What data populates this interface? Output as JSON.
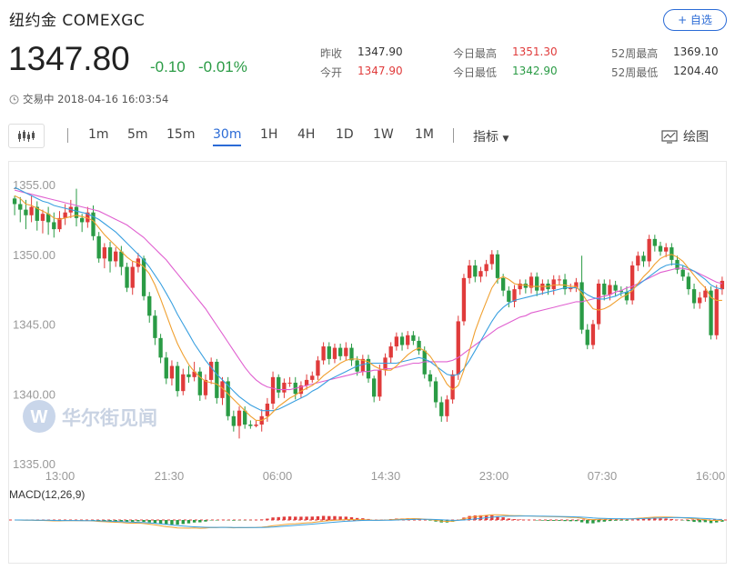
{
  "header": {
    "title": "纽约金 COMEXGC",
    "add_watchlist": "+ 自选",
    "price": "1347.80",
    "change": "-0.10",
    "change_pct": "-0.01%",
    "status": "交易中 2018-04-16 16:03:54"
  },
  "stats": [
    {
      "label": "昨收",
      "value": "1347.90",
      "color": "#333333"
    },
    {
      "label": "今开",
      "value": "1347.90",
      "color": "#e03b3b"
    },
    {
      "label": "今日最高",
      "value": "1351.30",
      "color": "#e03b3b"
    },
    {
      "label": "今日最低",
      "value": "1342.90",
      "color": "#2a9b45"
    },
    {
      "label": "52周最高",
      "value": "1369.10",
      "color": "#333333"
    },
    {
      "label": "52周最低",
      "value": "1204.40",
      "color": "#333333"
    }
  ],
  "toolbar": {
    "periods": [
      "1m",
      "5m",
      "15m",
      "30m",
      "1H",
      "4H",
      "1D",
      "1W",
      "1M"
    ],
    "active": "30m",
    "indicator_label": "指标",
    "draw_label": "绘图"
  },
  "watermark": "华尔街见闻",
  "colors": {
    "up": "#e03b3b",
    "down": "#2a9b45",
    "accent": "#2b6bd6",
    "ma_fast": "#f0a030",
    "ma_mid": "#3aa0e0",
    "ma_slow": "#e060d0"
  },
  "chart_data": {
    "type": "candlestick",
    "y_ticks": [
      "1335.00",
      "1340.00",
      "1345.00",
      "1350.00",
      "1355.00"
    ],
    "ylim": [
      1335,
      1355
    ],
    "x_ticks": [
      "13:00",
      "21:30",
      "06:00",
      "14:30",
      "23:00",
      "07:30",
      "16:00"
    ],
    "ohlc": [
      [
        1354,
        1353.6,
        1352.8,
        1354.2
      ],
      [
        1353.6,
        1353.2,
        1352.3,
        1354.1
      ],
      [
        1353.2,
        1352.8,
        1351.8,
        1353.9
      ],
      [
        1352.8,
        1353.4,
        1352.3,
        1354.2
      ],
      [
        1353.4,
        1352.4,
        1351.7,
        1353.8
      ],
      [
        1352.4,
        1352.9,
        1351.5,
        1353.2
      ],
      [
        1352.9,
        1352.3,
        1351.4,
        1353.4
      ],
      [
        1352.3,
        1351.8,
        1351.2,
        1353
      ],
      [
        1351.8,
        1352.6,
        1351.6,
        1353.1
      ],
      [
        1352.6,
        1353,
        1352.1,
        1353.6
      ],
      [
        1353,
        1353.4,
        1352.6,
        1353.9
      ],
      [
        1353.4,
        1352.6,
        1352,
        1354.7
      ],
      [
        1352.6,
        1352.3,
        1351.6,
        1352.9
      ],
      [
        1352.3,
        1353,
        1351.9,
        1353.4
      ],
      [
        1353,
        1351.3,
        1351,
        1353.5
      ],
      [
        1351.3,
        1349.7,
        1349.4,
        1351.6
      ],
      [
        1349.7,
        1350.5,
        1349,
        1350.8
      ],
      [
        1350.5,
        1349.5,
        1348.7,
        1350.9
      ],
      [
        1349.5,
        1350.2,
        1349.1,
        1350.5
      ],
      [
        1350.2,
        1349.1,
        1348.5,
        1350.6
      ],
      [
        1349.1,
        1347.6,
        1347.3,
        1349.4
      ],
      [
        1347.6,
        1349.1,
        1347.1,
        1349.5
      ],
      [
        1349.1,
        1349.7,
        1348.7,
        1350.1
      ],
      [
        1349.7,
        1347,
        1346.7,
        1349.9
      ],
      [
        1347,
        1345.6,
        1345.1,
        1347.3
      ],
      [
        1345.6,
        1344,
        1343.5,
        1346
      ],
      [
        1344,
        1342.6,
        1342.2,
        1344.3
      ],
      [
        1342.6,
        1341.1,
        1340.7,
        1343
      ],
      [
        1341.1,
        1342,
        1340.6,
        1342.4
      ],
      [
        1342,
        1340.2,
        1339.8,
        1342.3
      ],
      [
        1340.2,
        1341.4,
        1339.9,
        1341.8
      ],
      [
        1341.4,
        1341.2,
        1340.8,
        1342
      ],
      [
        1341.2,
        1341.6,
        1340.9,
        1342.3
      ],
      [
        1341.6,
        1339.9,
        1339.5,
        1341.9
      ],
      [
        1339.9,
        1341,
        1339.6,
        1341.4
      ],
      [
        1341,
        1342.3,
        1340.7,
        1342.6
      ],
      [
        1342.3,
        1339.7,
        1339.3,
        1342.5
      ],
      [
        1339.7,
        1340.9,
        1339.2,
        1341.2
      ],
      [
        1340.9,
        1338.4,
        1338.1,
        1341.2
      ],
      [
        1338.4,
        1337.7,
        1337.3,
        1338.8
      ],
      [
        1337.7,
        1338.8,
        1336.8,
        1339.1
      ],
      [
        1338.8,
        1337.8,
        1337.5,
        1339.1
      ],
      [
        1337.8,
        1337.7,
        1337.5,
        1338.1
      ],
      [
        1337.7,
        1337.8,
        1337.6,
        1338.1
      ],
      [
        1337.8,
        1338.4,
        1337.3,
        1338.9
      ],
      [
        1338.4,
        1339.3,
        1338,
        1339.7
      ],
      [
        1339.3,
        1341.2,
        1338.9,
        1341.6
      ],
      [
        1341.2,
        1340.1,
        1339.7,
        1341.4
      ],
      [
        1340.1,
        1340.8,
        1339.7,
        1341.1
      ],
      [
        1340.8,
        1340.8,
        1340.5,
        1341.2
      ],
      [
        1340.8,
        1340,
        1339.6,
        1341.2
      ],
      [
        1340,
        1340.6,
        1339.7,
        1340.9
      ],
      [
        1340.6,
        1341,
        1340.3,
        1341.4
      ],
      [
        1341,
        1341.3,
        1340.8,
        1341.6
      ],
      [
        1341.3,
        1342.4,
        1341,
        1342.7
      ],
      [
        1342.4,
        1343.4,
        1342.1,
        1343.7
      ],
      [
        1343.4,
        1342.5,
        1342.1,
        1343.7
      ],
      [
        1342.5,
        1343.3,
        1342.2,
        1343.6
      ],
      [
        1343.3,
        1342.7,
        1342.4,
        1343.6
      ],
      [
        1342.7,
        1343.3,
        1342.4,
        1343.7
      ],
      [
        1343.3,
        1342.4,
        1342,
        1343.6
      ],
      [
        1342.4,
        1341.6,
        1341.3,
        1342.7
      ],
      [
        1341.6,
        1342.5,
        1341.3,
        1342.8
      ],
      [
        1342.5,
        1341.1,
        1340.8,
        1342.8
      ],
      [
        1341.1,
        1339.8,
        1339.4,
        1341.3
      ],
      [
        1339.8,
        1341.7,
        1339.5,
        1342.1
      ],
      [
        1341.7,
        1342.6,
        1341.3,
        1342.9
      ],
      [
        1342.6,
        1343.4,
        1342.2,
        1343.7
      ],
      [
        1343.4,
        1344.1,
        1343.1,
        1344.4
      ],
      [
        1344.1,
        1343.5,
        1343.1,
        1344.4
      ],
      [
        1343.5,
        1344.2,
        1343.2,
        1344.5
      ],
      [
        1344.2,
        1343.8,
        1343.5,
        1344.5
      ],
      [
        1343.8,
        1343.1,
        1342.8,
        1344.1
      ],
      [
        1343.1,
        1341.4,
        1341.1,
        1343.4
      ],
      [
        1341.4,
        1340.9,
        1340.5,
        1341.7
      ],
      [
        1340.9,
        1339.4,
        1339,
        1341.2
      ],
      [
        1339.4,
        1338.4,
        1338,
        1339.8
      ],
      [
        1338.4,
        1339.6,
        1338,
        1339.9
      ],
      [
        1339.6,
        1341.4,
        1339.3,
        1341.7
      ],
      [
        1341.4,
        1345.2,
        1341,
        1345.6
      ],
      [
        1345.2,
        1348.3,
        1344.9,
        1348.6
      ],
      [
        1348.3,
        1349.2,
        1347.9,
        1349.6
      ],
      [
        1349.2,
        1348.4,
        1348,
        1349.6
      ],
      [
        1348.4,
        1348.8,
        1348,
        1349.1
      ],
      [
        1348.8,
        1349.3,
        1348.4,
        1349.6
      ],
      [
        1349.3,
        1350,
        1348.9,
        1350.3
      ],
      [
        1350,
        1348.3,
        1347.9,
        1350.3
      ],
      [
        1348.3,
        1347.4,
        1347,
        1348.6
      ],
      [
        1347.4,
        1346.6,
        1346.2,
        1347.7
      ],
      [
        1346.6,
        1347.5,
        1346.2,
        1347.8
      ],
      [
        1347.5,
        1347.9,
        1347.1,
        1348.2
      ],
      [
        1347.9,
        1347.6,
        1347.2,
        1348.2
      ],
      [
        1347.6,
        1348.4,
        1347.2,
        1348.7
      ],
      [
        1348.4,
        1347.4,
        1347,
        1348.7
      ],
      [
        1347.4,
        1347.9,
        1347.1,
        1348.2
      ],
      [
        1347.9,
        1347.5,
        1347.1,
        1348.2
      ],
      [
        1347.5,
        1348.2,
        1347.1,
        1348.5
      ],
      [
        1348.2,
        1348.2,
        1347.8,
        1348.5
      ],
      [
        1348.2,
        1347.5,
        1347.1,
        1348.6
      ],
      [
        1347.5,
        1347.6,
        1347.3,
        1347.9
      ],
      [
        1347.6,
        1348,
        1347.3,
        1348.3
      ],
      [
        1348,
        1344.6,
        1344.3,
        1349.9
      ],
      [
        1344.6,
        1343.5,
        1343.2,
        1345
      ],
      [
        1343.5,
        1345,
        1343.2,
        1345.3
      ],
      [
        1345,
        1347.9,
        1344.6,
        1348.2
      ],
      [
        1347.9,
        1347.1,
        1346.7,
        1348.2
      ],
      [
        1347.1,
        1347.8,
        1346.7,
        1348.2
      ],
      [
        1347.8,
        1347.4,
        1347,
        1348.1
      ],
      [
        1347.4,
        1347.3,
        1347,
        1347.7
      ],
      [
        1347.3,
        1346.7,
        1346.4,
        1347.7
      ],
      [
        1346.7,
        1349.2,
        1346.4,
        1349.5
      ],
      [
        1349.2,
        1349.9,
        1348.8,
        1350.2
      ],
      [
        1349.9,
        1349.5,
        1349.1,
        1350.2
      ],
      [
        1349.5,
        1351.1,
        1349.1,
        1351.4
      ],
      [
        1351.1,
        1350.6,
        1350.2,
        1351.4
      ],
      [
        1350.6,
        1350.2,
        1349.9,
        1350.9
      ],
      [
        1350.2,
        1350.5,
        1349.8,
        1350.8
      ],
      [
        1350.5,
        1349.6,
        1349.2,
        1350.8
      ],
      [
        1349.6,
        1348.9,
        1348.6,
        1349.9
      ],
      [
        1348.9,
        1348.4,
        1348.1,
        1349.2
      ],
      [
        1348.4,
        1347.5,
        1347.1,
        1348.7
      ],
      [
        1347.5,
        1346.5,
        1346.1,
        1347.9
      ],
      [
        1346.5,
        1346.9,
        1346.1,
        1347.3
      ],
      [
        1346.9,
        1347.4,
        1346.6,
        1347.7
      ],
      [
        1347.4,
        1344.2,
        1343.9,
        1347.7
      ],
      [
        1344.2,
        1347.5,
        1343.9,
        1347.8
      ],
      [
        1347.5,
        1348.1,
        1347.1,
        1348.4
      ]
    ],
    "ma_fast": [
      1354.2,
      1354,
      1353.6,
      1353.5,
      1353.3,
      1353.1,
      1352.9,
      1352.6,
      1352.5,
      1352.6,
      1352.7,
      1352.8,
      1352.7,
      1352.6,
      1352.4,
      1351.9,
      1351.4,
      1351,
      1350.6,
      1350.2,
      1349.8,
      1349.5,
      1349.4,
      1349.1,
      1348.6,
      1347.8,
      1346.8,
      1345.7,
      1344.6,
      1343.6,
      1342.8,
      1342.1,
      1341.6,
      1341.2,
      1340.9,
      1340.8,
      1340.7,
      1340.4,
      1340,
      1339.6,
      1339.2,
      1338.8,
      1338.4,
      1338.1,
      1338.1,
      1338.3,
      1338.7,
      1339.1,
      1339.4,
      1339.7,
      1339.9,
      1340.2,
      1340.4,
      1340.6,
      1340.9,
      1341.3,
      1341.6,
      1341.9,
      1342.2,
      1342.4,
      1342.5,
      1342.5,
      1342.4,
      1342.3,
      1342,
      1341.8,
      1341.7,
      1341.7,
      1342,
      1342.4,
      1342.8,
      1343.1,
      1343.3,
      1343.1,
      1342.7,
      1342.1,
      1341.4,
      1340.7,
      1340.3,
      1340.6,
      1341.7,
      1343.1,
      1344.5,
      1345.6,
      1346.6,
      1347.6,
      1348.2,
      1348.4,
      1348.2,
      1347.9,
      1347.8,
      1347.8,
      1347.7,
      1347.7,
      1347.7,
      1347.7,
      1347.8,
      1347.8,
      1347.8,
      1347.7,
      1347.7,
      1347.2,
      1346.6,
      1346.1,
      1346,
      1346.1,
      1346.3,
      1346.6,
      1346.9,
      1347.1,
      1347.4,
      1347.9,
      1348.4,
      1348.8,
      1349.3,
      1349.7,
      1349.9,
      1350,
      1349.8,
      1349.5,
      1349,
      1348.5,
      1348,
      1347.6,
      1346.9,
      1346.7,
      1346.7
    ],
    "ma_mid": [
      1354.8,
      1354.6,
      1354.4,
      1354.2,
      1354,
      1353.8,
      1353.7,
      1353.5,
      1353.4,
      1353.3,
      1353.2,
      1353.1,
      1353,
      1352.9,
      1352.7,
      1352.5,
      1352.2,
      1351.9,
      1351.6,
      1351.2,
      1350.8,
      1350.4,
      1350,
      1349.6,
      1349.1,
      1348.5,
      1347.9,
      1347.2,
      1346.5,
      1345.7,
      1345,
      1344.3,
      1343.6,
      1343,
      1342.4,
      1341.9,
      1341.4,
      1341,
      1340.6,
      1340.2,
      1339.8,
      1339.5,
      1339.2,
      1339,
      1338.8,
      1338.8,
      1338.8,
      1338.9,
      1339.1,
      1339.3,
      1339.5,
      1339.7,
      1339.9,
      1340.2,
      1340.4,
      1340.7,
      1341,
      1341.2,
      1341.4,
      1341.6,
      1341.8,
      1342,
      1342.1,
      1342.2,
      1342.2,
      1342.2,
      1342.2,
      1342.2,
      1342.2,
      1342.3,
      1342.4,
      1342.5,
      1342.6,
      1342.5,
      1342.3,
      1342,
      1341.7,
      1341.4,
      1341.3,
      1341.4,
      1341.8,
      1342.4,
      1343.1,
      1343.8,
      1344.5,
      1345.2,
      1345.8,
      1346.2,
      1346.5,
      1346.7,
      1346.8,
      1346.9,
      1347,
      1347.1,
      1347.2,
      1347.3,
      1347.4,
      1347.5,
      1347.6,
      1347.6,
      1347.6,
      1347.4,
      1347.1,
      1346.9,
      1346.8,
      1346.8,
      1346.9,
      1347,
      1347.2,
      1347.3,
      1347.5,
      1347.8,
      1348.1,
      1348.4,
      1348.7,
      1349,
      1349.2,
      1349.3,
      1349.3,
      1349.2,
      1349,
      1348.8,
      1348.5,
      1348.2,
      1347.8,
      1347.6,
      1347.5
    ],
    "ma_slow": [
      1354.6,
      1354.5,
      1354.4,
      1354.3,
      1354.2,
      1354.1,
      1354,
      1353.9,
      1353.8,
      1353.7,
      1353.6,
      1353.5,
      1353.4,
      1353.3,
      1353.2,
      1353.1,
      1352.9,
      1352.7,
      1352.5,
      1352.3,
      1352.1,
      1351.8,
      1351.5,
      1351.2,
      1350.8,
      1350.4,
      1350,
      1349.6,
      1349.1,
      1348.6,
      1348.1,
      1347.6,
      1347.1,
      1346.6,
      1346.1,
      1345.5,
      1344.9,
      1344.3,
      1343.7,
      1343.1,
      1342.5,
      1341.9,
      1341.4,
      1341,
      1340.7,
      1340.5,
      1340.4,
      1340.3,
      1340.3,
      1340.3,
      1340.4,
      1340.5,
      1340.6,
      1340.7,
      1340.8,
      1340.9,
      1341,
      1341.1,
      1341.2,
      1341.3,
      1341.4,
      1341.5,
      1341.6,
      1341.6,
      1341.7,
      1341.7,
      1341.8,
      1341.8,
      1341.9,
      1342,
      1342.1,
      1342.2,
      1342.2,
      1342.3,
      1342.3,
      1342.3,
      1342.3,
      1342.3,
      1342.4,
      1342.6,
      1342.9,
      1343.2,
      1343.5,
      1343.8,
      1344.1,
      1344.4,
      1344.7,
      1344.9,
      1345.1,
      1345.3,
      1345.5,
      1345.6,
      1345.8,
      1345.9,
      1346,
      1346.1,
      1346.2,
      1346.3,
      1346.4,
      1346.5,
      1346.6,
      1346.6,
      1346.7,
      1346.8,
      1346.9,
      1347,
      1347.1,
      1347.3,
      1347.4,
      1347.6,
      1347.7,
      1347.9,
      1348.1,
      1348.3,
      1348.5,
      1348.7,
      1348.8,
      1348.9,
      1349,
      1349,
      1348.9,
      1348.8,
      1348.6,
      1348.4,
      1348.2,
      1348,
      1347.9
    ],
    "macd_label": "MACD(12,26,9)"
  }
}
